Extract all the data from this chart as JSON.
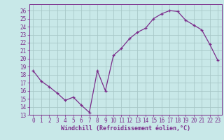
{
  "x": [
    0,
    1,
    2,
    3,
    4,
    5,
    6,
    7,
    8,
    9,
    10,
    11,
    12,
    13,
    14,
    15,
    16,
    17,
    18,
    19,
    20,
    21,
    22,
    23
  ],
  "y": [
    18.5,
    17.2,
    16.5,
    15.7,
    14.8,
    15.2,
    14.2,
    13.3,
    18.5,
    16.0,
    20.4,
    21.3,
    22.5,
    23.3,
    23.8,
    25.0,
    25.6,
    26.0,
    25.9,
    24.8,
    24.2,
    23.6,
    21.8,
    19.8
  ],
  "line_color": "#7b2d8b",
  "bg_color": "#c8e8e8",
  "grid_color": "#a8c8c8",
  "xlabel": "Windchill (Refroidissement éolien,°C)",
  "xlabel_color": "#7b2d8b",
  "tick_color": "#7b2d8b",
  "spine_color": "#7b2d8b",
  "yticks": [
    13,
    14,
    15,
    16,
    17,
    18,
    19,
    20,
    21,
    22,
    23,
    24,
    25,
    26
  ],
  "xlim": [
    -0.5,
    23.5
  ],
  "ylim": [
    13,
    26.8
  ],
  "xticks": [
    0,
    1,
    2,
    3,
    4,
    5,
    6,
    7,
    8,
    9,
    10,
    11,
    12,
    13,
    14,
    15,
    16,
    17,
    18,
    19,
    20,
    21,
    22,
    23
  ],
  "xtick_labels": [
    "0",
    "1",
    "2",
    "3",
    "4",
    "5",
    "6",
    "7",
    "8",
    "9",
    "10",
    "11",
    "12",
    "13",
    "14",
    "15",
    "16",
    "17",
    "18",
    "19",
    "20",
    "21",
    "22",
    "23"
  ],
  "tick_fontsize": 5.5,
  "xlabel_fontsize": 6.0,
  "markersize": 3.0,
  "linewidth": 0.9
}
